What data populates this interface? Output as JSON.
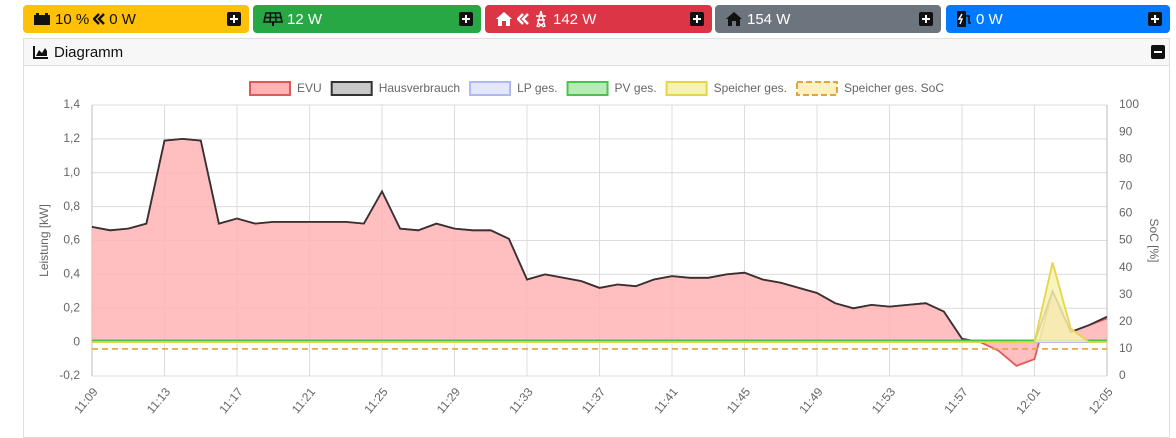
{
  "tiles": [
    {
      "color": "#ffc107",
      "text_color": "#111111",
      "values": [
        "10 %",
        "0 W"
      ]
    },
    {
      "color": "#28a745",
      "text_color": "#ffffff",
      "values": [
        "12 W"
      ]
    },
    {
      "color": "#dc3545",
      "text_color": "#ffffff",
      "values": [
        "142 W"
      ]
    },
    {
      "color": "#6c757d",
      "text_color": "#ffffff",
      "values": [
        "154 W"
      ]
    },
    {
      "color": "#007bff",
      "text_color": "#ffffff",
      "values": [
        "0 W"
      ]
    }
  ],
  "card_title": "Diagramm",
  "chart_data": {
    "type": "line",
    "y_label": "Leistung [kW]",
    "y2_label": "SoC [%]",
    "grid": true,
    "legend": "top",
    "x": [
      "11:09",
      "11:10",
      "11:11",
      "11:12",
      "11:13",
      "11:14",
      "11:15",
      "11:16",
      "11:17",
      "11:18",
      "11:19",
      "11:20",
      "11:21",
      "11:22",
      "11:23",
      "11:24",
      "11:25",
      "11:26",
      "11:27",
      "11:28",
      "11:29",
      "11:30",
      "11:31",
      "11:32",
      "11:33",
      "11:34",
      "11:35",
      "11:36",
      "11:37",
      "11:38",
      "11:39",
      "11:40",
      "11:41",
      "11:42",
      "11:43",
      "11:44",
      "11:45",
      "11:46",
      "11:47",
      "11:48",
      "11:49",
      "11:50",
      "11:51",
      "11:52",
      "11:53",
      "11:54",
      "11:55",
      "11:56",
      "11:57",
      "11:58",
      "11:59",
      "12:00",
      "12:01",
      "12:02",
      "12:03",
      "12:04",
      "12:05"
    ],
    "xticks": [
      "11:09",
      "11:13",
      "11:17",
      "11:21",
      "11:25",
      "11:29",
      "11:33",
      "11:37",
      "11:41",
      "11:45",
      "11:49",
      "11:53",
      "11:57",
      "12:01",
      "12:05"
    ],
    "ylim": [
      -0.2,
      1.4
    ],
    "yticks": [
      {
        "value": -0.2,
        "label": "-0,2"
      },
      0,
      {
        "value": 0.2,
        "label": "0,2"
      },
      {
        "value": 0.4,
        "label": "0,4"
      },
      {
        "value": 0.6,
        "label": "0,6"
      },
      {
        "value": 0.8,
        "label": "0,8"
      },
      {
        "value": 1.0,
        "label": "1,0"
      },
      {
        "value": 1.2,
        "label": "1,2"
      },
      {
        "value": 1.4,
        "label": "1,4"
      }
    ],
    "y2lim": [
      0,
      100
    ],
    "y2ticks": [
      0,
      10,
      20,
      30,
      40,
      50,
      60,
      70,
      80,
      90,
      100
    ],
    "series": [
      {
        "name": "EVU",
        "color": "#e0585a",
        "fill": "#ffb3b5",
        "area": true,
        "values": [
          0.68,
          0.66,
          0.67,
          0.7,
          1.19,
          1.2,
          1.19,
          0.7,
          0.73,
          0.7,
          0.71,
          0.71,
          0.71,
          0.71,
          0.71,
          0.7,
          0.89,
          0.67,
          0.66,
          0.7,
          0.67,
          0.66,
          0.66,
          0.61,
          0.37,
          0.4,
          0.38,
          0.36,
          0.32,
          0.34,
          0.33,
          0.37,
          0.39,
          0.38,
          0.38,
          0.4,
          0.41,
          0.37,
          0.35,
          0.32,
          0.29,
          0.23,
          0.2,
          0.22,
          0.21,
          0.22,
          0.23,
          0.18,
          0.02,
          0.0,
          -0.05,
          -0.14,
          -0.1,
          0.3,
          0.06,
          0.1,
          0.14
        ]
      },
      {
        "name": "Hausverbrauch",
        "color": "#333333",
        "fill": "#c8c8c8",
        "area": false,
        "values": [
          0.68,
          0.66,
          0.67,
          0.7,
          1.19,
          1.2,
          1.19,
          0.7,
          0.73,
          0.7,
          0.71,
          0.71,
          0.71,
          0.71,
          0.71,
          0.7,
          0.89,
          0.67,
          0.66,
          0.7,
          0.67,
          0.66,
          0.66,
          0.61,
          0.37,
          0.4,
          0.38,
          0.36,
          0.32,
          0.34,
          0.33,
          0.37,
          0.39,
          0.38,
          0.38,
          0.4,
          0.41,
          0.37,
          0.35,
          0.32,
          0.29,
          0.23,
          0.2,
          0.22,
          0.21,
          0.22,
          0.23,
          0.18,
          0.02,
          0.0,
          0.01,
          0.0,
          0.0,
          0.3,
          0.06,
          0.1,
          0.15
        ]
      },
      {
        "name": "LP ges.",
        "color": "#b0b8f0",
        "fill": "#e4e6fb",
        "area": false,
        "values": [
          0,
          0,
          0,
          0,
          0,
          0,
          0,
          0,
          0,
          0,
          0,
          0,
          0,
          0,
          0,
          0,
          0,
          0,
          0,
          0,
          0,
          0,
          0,
          0,
          0,
          0,
          0,
          0,
          0,
          0,
          0,
          0,
          0,
          0,
          0,
          0,
          0,
          0,
          0,
          0,
          0,
          0,
          0,
          0,
          0,
          0,
          0,
          0,
          0,
          0,
          0,
          0,
          0,
          0,
          0,
          0,
          0
        ]
      },
      {
        "name": "PV ges.",
        "color": "#4cc24c",
        "fill": "#b5ecb5",
        "area": false,
        "values": [
          0.01,
          0.01,
          0.01,
          0.01,
          0.01,
          0.01,
          0.01,
          0.01,
          0.01,
          0.01,
          0.01,
          0.01,
          0.01,
          0.01,
          0.01,
          0.01,
          0.01,
          0.01,
          0.01,
          0.01,
          0.01,
          0.01,
          0.01,
          0.01,
          0.01,
          0.01,
          0.01,
          0.01,
          0.01,
          0.01,
          0.01,
          0.01,
          0.01,
          0.01,
          0.01,
          0.01,
          0.01,
          0.01,
          0.01,
          0.01,
          0.01,
          0.01,
          0.01,
          0.01,
          0.01,
          0.01,
          0.01,
          0.01,
          0.01,
          0.01,
          0.01,
          0.01,
          0.01,
          0.01,
          0.01,
          0.01,
          0.01
        ]
      },
      {
        "name": "Speicher ges.",
        "color": "#e8d44a",
        "fill": "#f6f3b0",
        "area": true,
        "values": [
          0,
          0,
          0,
          0,
          0,
          0,
          0,
          0,
          0,
          0,
          0,
          0,
          0,
          0,
          0,
          0,
          0,
          0,
          0,
          0,
          0,
          0,
          0,
          0,
          0,
          0,
          0,
          0,
          0,
          0,
          0,
          0,
          0,
          0,
          0,
          0,
          0,
          0,
          0,
          0,
          0,
          0,
          0,
          0,
          0,
          0,
          0,
          0,
          0,
          0,
          0,
          0,
          0,
          0.47,
          0.08,
          0,
          0
        ]
      },
      {
        "name": "Speicher ges. SoC",
        "color": "#e6a23c",
        "fill": "#fdf1c0",
        "area": false,
        "dashed": true,
        "axis": "y2",
        "values": [
          10,
          10,
          10,
          10,
          10,
          10,
          10,
          10,
          10,
          10,
          10,
          10,
          10,
          10,
          10,
          10,
          10,
          10,
          10,
          10,
          10,
          10,
          10,
          10,
          10,
          10,
          10,
          10,
          10,
          10,
          10,
          10,
          10,
          10,
          10,
          10,
          10,
          10,
          10,
          10,
          10,
          10,
          10,
          10,
          10,
          10,
          10,
          10,
          10,
          10,
          10,
          10,
          10,
          10,
          10,
          10,
          10
        ]
      }
    ]
  }
}
